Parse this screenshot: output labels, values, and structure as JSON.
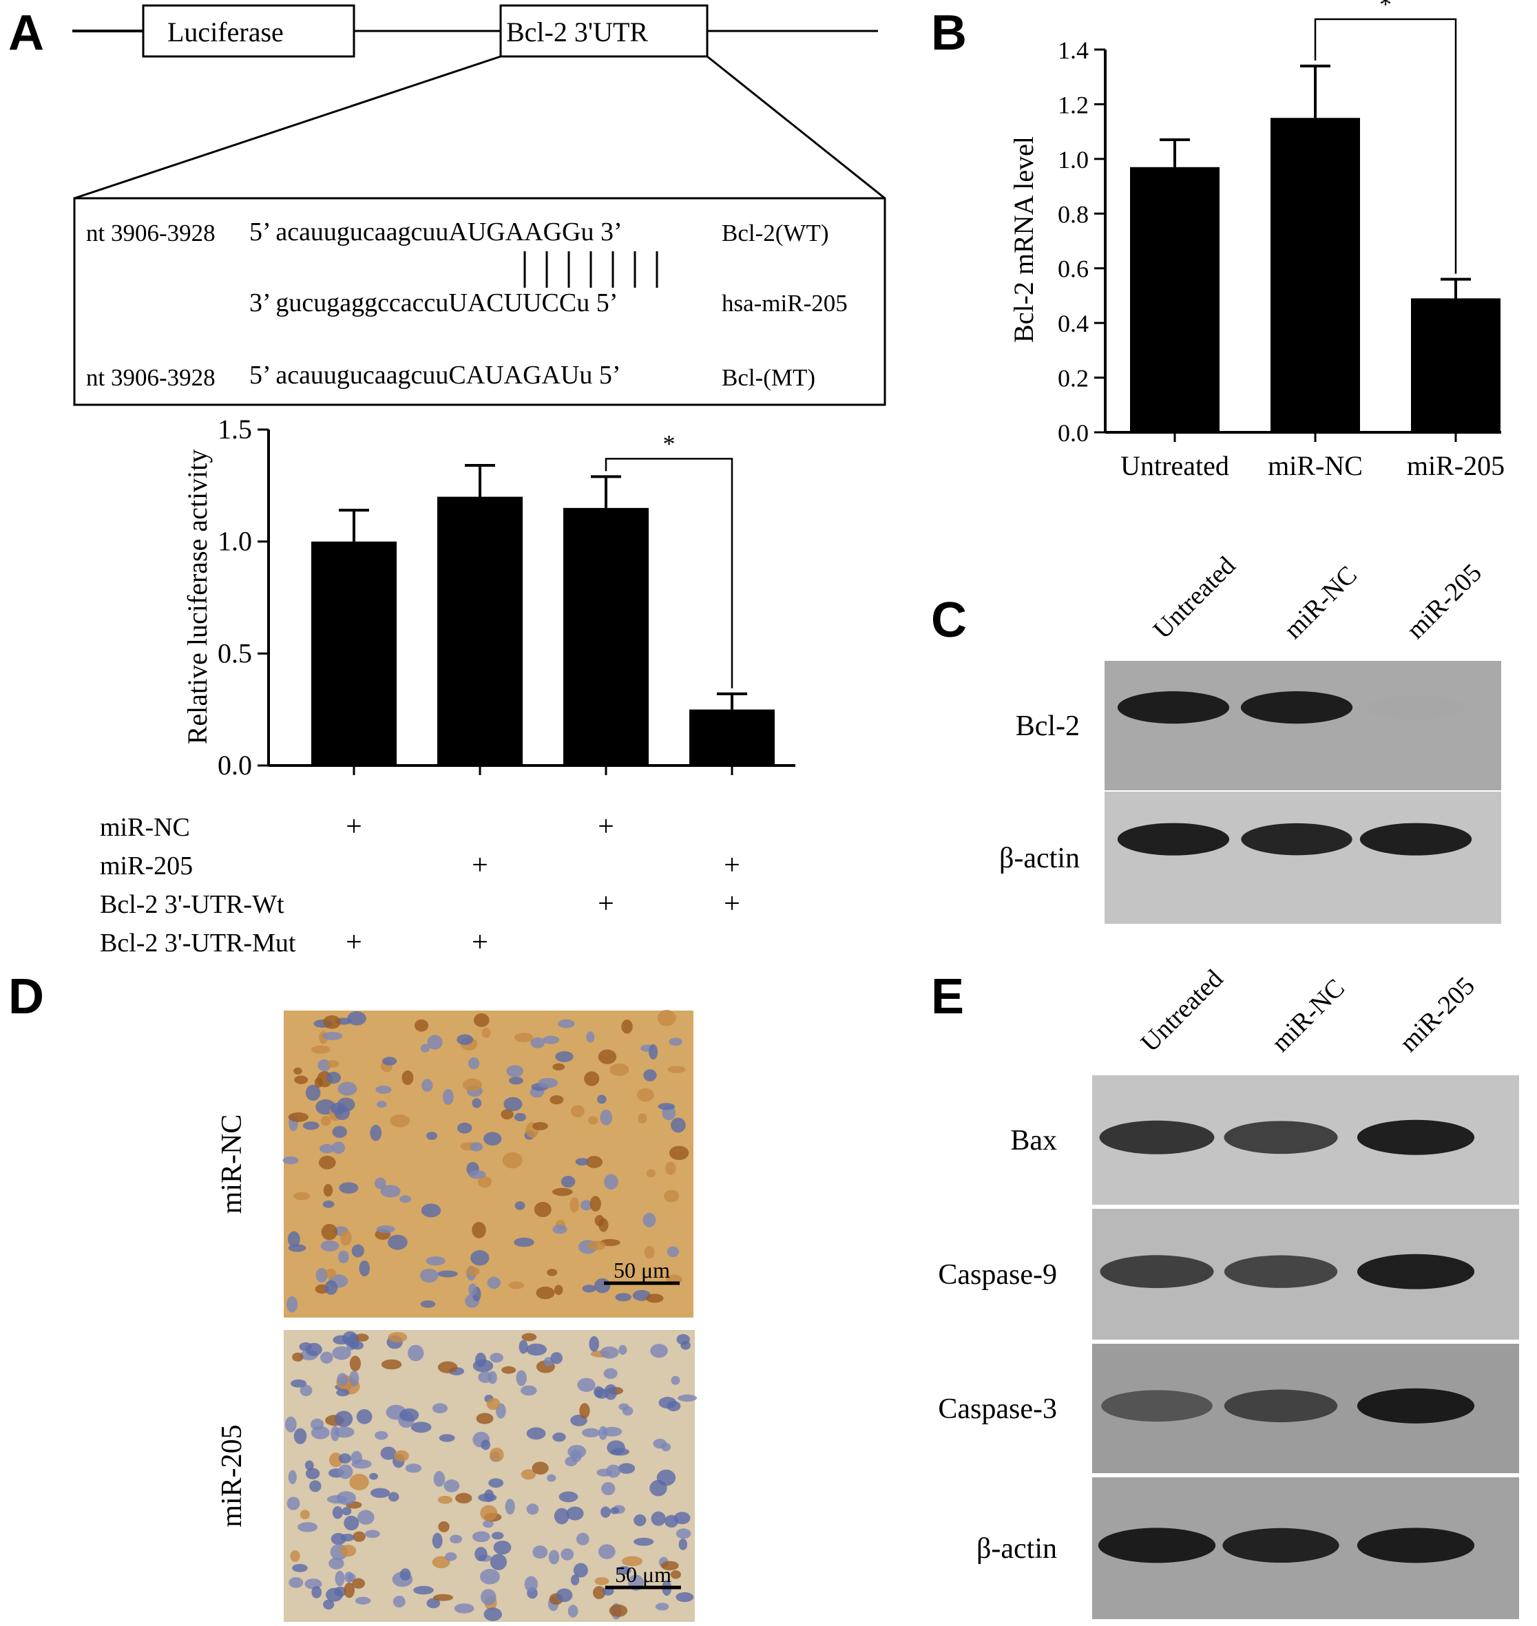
{
  "panels": {
    "a": "A",
    "b": "B",
    "c": "C",
    "d": "D",
    "e": "E"
  },
  "construct": {
    "box1": "Luciferase",
    "box2": "Bcl-2 3'UTR"
  },
  "alignment": {
    "rows": [
      {
        "pos": "nt 3906-3928",
        "seq": "5’ acauugucaagcuuAUGAAGGu 3’",
        "name": "Bcl-2(WT)"
      },
      {
        "pos": "",
        "seq": "3’ gucugaggccaccuUACUUCCu 5’",
        "name": "hsa-miR-205"
      },
      {
        "pos": "nt 3906-3928",
        "seq": "5’ acauugucaagcuuCAUAGAUu 5’",
        "name": "Bcl-(MT)"
      }
    ],
    "pairs": 7
  },
  "conditions": {
    "rows": [
      {
        "label": "miR-NC",
        "marks": [
          "+",
          "",
          "+",
          ""
        ]
      },
      {
        "label": "miR-205",
        "marks": [
          "",
          "+",
          "",
          "+"
        ]
      },
      {
        "label": "Bcl-2 3'-UTR-Wt",
        "marks": [
          "",
          "",
          "+",
          "+"
        ]
      },
      {
        "label": "Bcl-2 3'-UTR-Mut",
        "marks": [
          "+",
          "+",
          "",
          ""
        ]
      }
    ]
  },
  "blot_c": {
    "lanes": [
      "Untreated",
      "miR-NC",
      "miR-205"
    ],
    "rows": [
      {
        "label": "Bcl-2",
        "intensity": [
          0.95,
          0.95,
          0.35
        ]
      },
      {
        "label": "β-actin",
        "intensity": [
          0.95,
          0.92,
          0.95
        ]
      }
    ]
  },
  "blot_e": {
    "lanes": [
      "Untreated",
      "miR-NC",
      "miR-205"
    ],
    "rows": [
      {
        "label": "Bax",
        "intensity": [
          0.85,
          0.8,
          0.95
        ]
      },
      {
        "label": "Caspase-9",
        "intensity": [
          0.8,
          0.78,
          0.95
        ]
      },
      {
        "label": "Caspase-3",
        "intensity": [
          0.7,
          0.78,
          0.95
        ]
      },
      {
        "label": "β-actin",
        "intensity": [
          0.95,
          0.92,
          0.95
        ]
      }
    ]
  },
  "ihc": {
    "rows": [
      {
        "label": "miR-NC",
        "scale": "50 μm"
      },
      {
        "label": "miR-205",
        "scale": "50 μm"
      }
    ]
  },
  "chart_data": [
    {
      "id": "A",
      "type": "bar",
      "ylabel": "Relative luciferase activity",
      "ylim": [
        0,
        1.5
      ],
      "yticks": [
        0.0,
        0.5,
        1.0,
        1.5
      ],
      "ytick_labels": [
        "0.0",
        "0.5",
        "1.0",
        "1.5"
      ],
      "values": [
        1.0,
        1.2,
        1.15,
        0.25
      ],
      "errors": [
        0.14,
        0.14,
        0.14,
        0.07
      ],
      "significance": {
        "from": 2,
        "to": 3,
        "label": "*"
      }
    },
    {
      "id": "B",
      "type": "bar",
      "ylabel": "Bcl-2 mRNA level",
      "categories": [
        "Untreated",
        "miR-NC",
        "miR-205"
      ],
      "ylim": [
        0,
        1.4
      ],
      "yticks": [
        0.0,
        0.2,
        0.4,
        0.6,
        0.8,
        1.0,
        1.2,
        1.4
      ],
      "ytick_labels": [
        "0.0",
        "0.2",
        "0.4",
        "0.6",
        "0.8",
        "1.0",
        "1.2",
        "1.4"
      ],
      "values": [
        0.97,
        1.15,
        0.49
      ],
      "errors": [
        0.1,
        0.19,
        0.07
      ],
      "significance": {
        "from": 1,
        "to": 2,
        "label": "*"
      }
    }
  ]
}
